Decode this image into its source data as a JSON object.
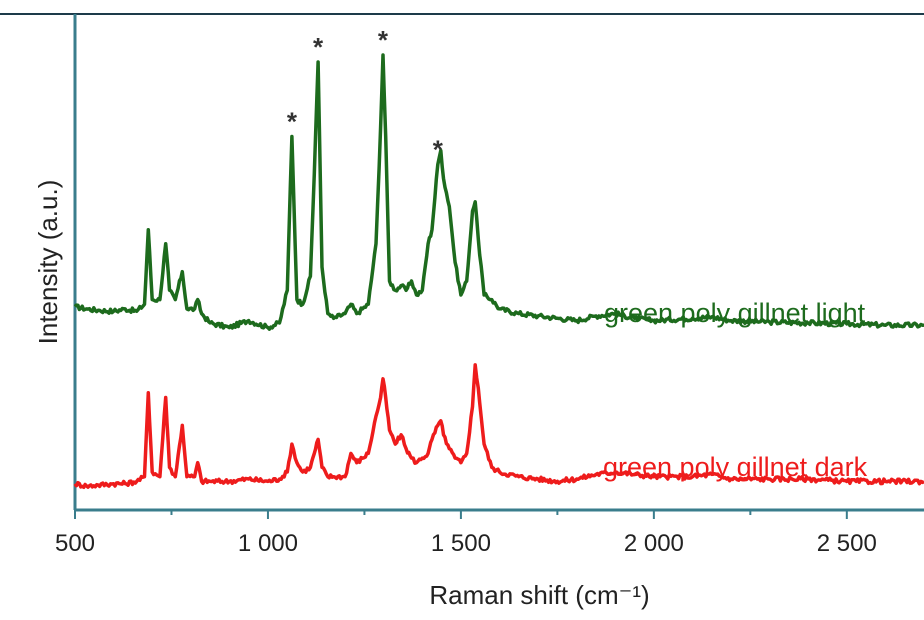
{
  "chart_data": {
    "type": "line",
    "xlabel": "Raman shift (cm⁻¹)",
    "ylabel": "Intensity (a.u.)",
    "xlim": [
      500,
      2700
    ],
    "x_ticks": [
      500,
      1000,
      1500,
      2000,
      2500
    ],
    "x_tick_labels": [
      "500",
      "1 000",
      "1 500",
      "2 000",
      "2 500"
    ],
    "ylim": [
      0,
      1
    ],
    "axis_color": "#3a7d8c",
    "series": [
      {
        "name": "green poly gillnet light",
        "color": "#1d6b1d",
        "x": [
          500,
          530,
          560,
          600,
          630,
          660,
          680,
          690,
          700,
          720,
          735,
          745,
          760,
          778,
          790,
          810,
          818,
          828,
          850,
          900,
          950,
          1000,
          1030,
          1050,
          1062,
          1075,
          1090,
          1110,
          1120,
          1130,
          1140,
          1155,
          1170,
          1200,
          1215,
          1230,
          1260,
          1280,
          1292,
          1298,
          1305,
          1315,
          1330,
          1345,
          1358,
          1372,
          1385,
          1400,
          1415,
          1425,
          1440,
          1448,
          1455,
          1470,
          1485,
          1500,
          1515,
          1530,
          1537,
          1545,
          1560,
          1580,
          1600,
          1650,
          1700,
          1750,
          1800,
          1850,
          1900,
          1950,
          2000,
          2100,
          2150,
          2200,
          2300,
          2400,
          2500,
          2600,
          2700
        ],
        "values": [
          0.415,
          0.41,
          0.407,
          0.405,
          0.41,
          0.405,
          0.42,
          0.58,
          0.43,
          0.43,
          0.55,
          0.45,
          0.43,
          0.49,
          0.41,
          0.41,
          0.43,
          0.4,
          0.38,
          0.37,
          0.385,
          0.37,
          0.38,
          0.45,
          0.78,
          0.43,
          0.42,
          0.48,
          0.7,
          0.94,
          0.5,
          0.4,
          0.39,
          0.4,
          0.42,
          0.4,
          0.42,
          0.55,
          0.8,
          0.955,
          0.78,
          0.47,
          0.45,
          0.46,
          0.45,
          0.47,
          0.44,
          0.45,
          0.55,
          0.58,
          0.72,
          0.75,
          0.69,
          0.63,
          0.51,
          0.44,
          0.47,
          0.62,
          0.64,
          0.56,
          0.44,
          0.43,
          0.41,
          0.4,
          0.395,
          0.39,
          0.385,
          0.395,
          0.4,
          0.39,
          0.385,
          0.39,
          0.393,
          0.385,
          0.382,
          0.38,
          0.378,
          0.375,
          0.375
        ]
      },
      {
        "name": "green poly gillnet dark",
        "color": "#ee1c1c",
        "x": [
          500,
          530,
          560,
          600,
          630,
          660,
          680,
          690,
          700,
          720,
          735,
          745,
          760,
          778,
          790,
          810,
          818,
          828,
          850,
          900,
          950,
          1000,
          1030,
          1050,
          1062,
          1075,
          1090,
          1110,
          1120,
          1130,
          1140,
          1155,
          1170,
          1200,
          1215,
          1230,
          1260,
          1280,
          1292,
          1298,
          1305,
          1315,
          1330,
          1345,
          1358,
          1372,
          1385,
          1400,
          1415,
          1425,
          1440,
          1448,
          1455,
          1470,
          1485,
          1500,
          1515,
          1530,
          1537,
          1545,
          1560,
          1580,
          1600,
          1650,
          1700,
          1750,
          1800,
          1850,
          1900,
          1950,
          2000,
          2100,
          2150,
          2200,
          2300,
          2400,
          2500,
          2600,
          2700
        ],
        "values": [
          0.035,
          0.03,
          0.032,
          0.035,
          0.035,
          0.04,
          0.05,
          0.23,
          0.06,
          0.05,
          0.22,
          0.07,
          0.05,
          0.16,
          0.05,
          0.05,
          0.08,
          0.04,
          0.04,
          0.04,
          0.045,
          0.04,
          0.045,
          0.06,
          0.12,
          0.08,
          0.06,
          0.07,
          0.1,
          0.13,
          0.07,
          0.05,
          0.05,
          0.05,
          0.1,
          0.08,
          0.1,
          0.18,
          0.22,
          0.26,
          0.22,
          0.15,
          0.12,
          0.14,
          0.11,
          0.09,
          0.08,
          0.09,
          0.1,
          0.13,
          0.16,
          0.17,
          0.14,
          0.11,
          0.09,
          0.08,
          0.1,
          0.2,
          0.29,
          0.24,
          0.12,
          0.07,
          0.06,
          0.05,
          0.045,
          0.04,
          0.045,
          0.055,
          0.06,
          0.055,
          0.05,
          0.05,
          0.055,
          0.045,
          0.045,
          0.045,
          0.04,
          0.04,
          0.04
        ]
      }
    ],
    "annotations": [
      {
        "text": "*",
        "x": 1062,
        "y": 0.78
      },
      {
        "text": "*",
        "x": 1130,
        "y": 0.94
      },
      {
        "text": "*",
        "x": 1298,
        "y": 0.955
      },
      {
        "text": "*",
        "x": 1440,
        "y": 0.72
      }
    ],
    "grid": false,
    "legend": "none"
  }
}
